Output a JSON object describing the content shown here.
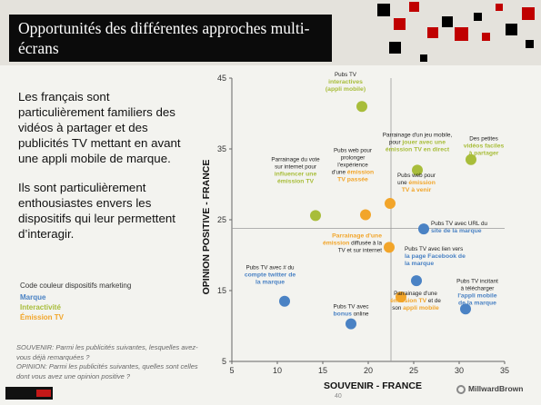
{
  "header": {
    "title": "Opportunités des différentes approches multi-écrans",
    "red_color": "#c00000",
    "black_color": "#000000"
  },
  "left": {
    "para1": "Les français sont particulièrement familiers des vidéos à partager et des publicités TV mettant en avant une appli mobile de marque.",
    "para2": "Ils sont particulièrement enthousiastes envers les dispositifs qui leur permettent d’interagir.",
    "legend_title": "Code couleur dispositifs marketing",
    "legend": [
      {
        "label": "Marque",
        "color": "#4a82c4"
      },
      {
        "label": "Interactivité",
        "color": "#a8bd3a"
      },
      {
        "label": "Émission TV",
        "color": "#f2a52a"
      }
    ],
    "note1": "SOUVENIR: Parmi les publicités suivantes, lesquelles avez-vous déjà remarquées ?",
    "note2": "OPINION: Parmi les publicités suivantes, quelles sont celles dont vous avez une opinion positive ?"
  },
  "footer": {
    "page_number": "40",
    "right_logo": "MillwardBrown"
  },
  "chart_data": {
    "type": "scatter",
    "xlabel": "SOUVENIR - FRANCE",
    "ylabel": "OPINION POSITIVE - FRANCE",
    "xlim": [
      5,
      35
    ],
    "ylim": [
      5,
      45
    ],
    "xticks": [
      5,
      10,
      15,
      20,
      25,
      30,
      35
    ],
    "yticks": [
      5,
      15,
      25,
      35,
      45
    ],
    "ref_x": 22.5,
    "ref_y": 23.8,
    "points": [
      {
        "x": 19.3,
        "y": 41,
        "category": "interactivite",
        "segments": [
          [
            "Pubs TV",
            "n"
          ],
          [
            "interactives",
            "c"
          ],
          [
            "(appli mobile)",
            "c"
          ]
        ]
      },
      {
        "x": 25.4,
        "y": 32,
        "category": "interactivite",
        "segments": [
          [
            "Parrainage d'un jeu mobile,",
            "n"
          ],
          [
            "pour ",
            "n"
          ],
          [
            "jouer avec une",
            "c"
          ],
          [
            "émission TV en direct",
            "c"
          ]
        ]
      },
      {
        "x": 31.3,
        "y": 33.5,
        "category": "interactivite",
        "segments": [
          [
            "Des petites",
            "n"
          ],
          [
            "vidéos faciles",
            "c"
          ],
          [
            "à partager",
            "c"
          ]
        ]
      },
      {
        "x": 14.2,
        "y": 25.6,
        "category": "interactivite",
        "segments": [
          [
            "Parrainage du vote",
            "n"
          ],
          [
            "sur internet pour",
            "n"
          ],
          [
            "influencer une",
            "c"
          ],
          [
            "émission TV",
            "c"
          ]
        ]
      },
      {
        "x": 19.7,
        "y": 25.7,
        "category": "emission",
        "segments": [
          [
            "Pubs web pour",
            "n"
          ],
          [
            "prolonger",
            "n"
          ],
          [
            "l'expérience",
            "n"
          ],
          [
            "d'une ",
            "n"
          ],
          [
            "émission",
            "c"
          ],
          [
            "TV passée",
            "c"
          ]
        ]
      },
      {
        "x": 22.4,
        "y": 27.3,
        "category": "emission",
        "segments": [
          [
            "Pubs web pour",
            "n"
          ],
          [
            "une ",
            "n"
          ],
          [
            "émission",
            "c"
          ],
          [
            "TV à venir",
            "c"
          ]
        ]
      },
      {
        "x": 26.1,
        "y": 23.7,
        "category": "marque",
        "segments": [
          [
            "Pubs TV avec URL du",
            "n"
          ],
          [
            "site de la marque",
            "c"
          ]
        ]
      },
      {
        "x": 22.3,
        "y": 21.1,
        "category": "emission",
        "segments": [
          [
            "Parrainage d'une",
            "c"
          ],
          [
            "émission",
            "c"
          ],
          [
            " diffusée à la",
            "n"
          ],
          [
            "TV et sur internet",
            "n"
          ]
        ]
      },
      {
        "x": 25.3,
        "y": 16.4,
        "category": "marque",
        "segments": [
          [
            "Pubs TV avec lien vers",
            "n"
          ],
          [
            "la page Facebook de",
            "c"
          ],
          [
            "la marque",
            "c"
          ]
        ]
      },
      {
        "x": 10.8,
        "y": 13.5,
        "category": "marque",
        "segments": [
          [
            "Pubs TV avec # du",
            "n"
          ],
          [
            "compte twitter de",
            "c"
          ],
          [
            "la marque",
            "c"
          ]
        ]
      },
      {
        "x": 18.1,
        "y": 10.3,
        "category": "marque",
        "segments": [
          [
            "Pubs TV avec",
            "n"
          ],
          [
            "bonus",
            "c"
          ],
          [
            " online",
            "n"
          ]
        ]
      },
      {
        "x": 23.6,
        "y": 14.1,
        "category": "emission",
        "segments": [
          [
            "Parrainage d'une",
            "n"
          ],
          [
            "émission TV",
            "c"
          ],
          [
            " et de",
            "n"
          ],
          [
            "son ",
            "n"
          ],
          [
            "appli mobile",
            "c"
          ]
        ]
      },
      {
        "x": 30.7,
        "y": 12.4,
        "category": "marque",
        "segments": [
          [
            "Pubs TV incitant",
            "n"
          ],
          [
            "à télécharger",
            "n"
          ],
          [
            "l'appli mobile",
            "c"
          ],
          [
            "de la marque",
            "c"
          ]
        ]
      }
    ]
  }
}
